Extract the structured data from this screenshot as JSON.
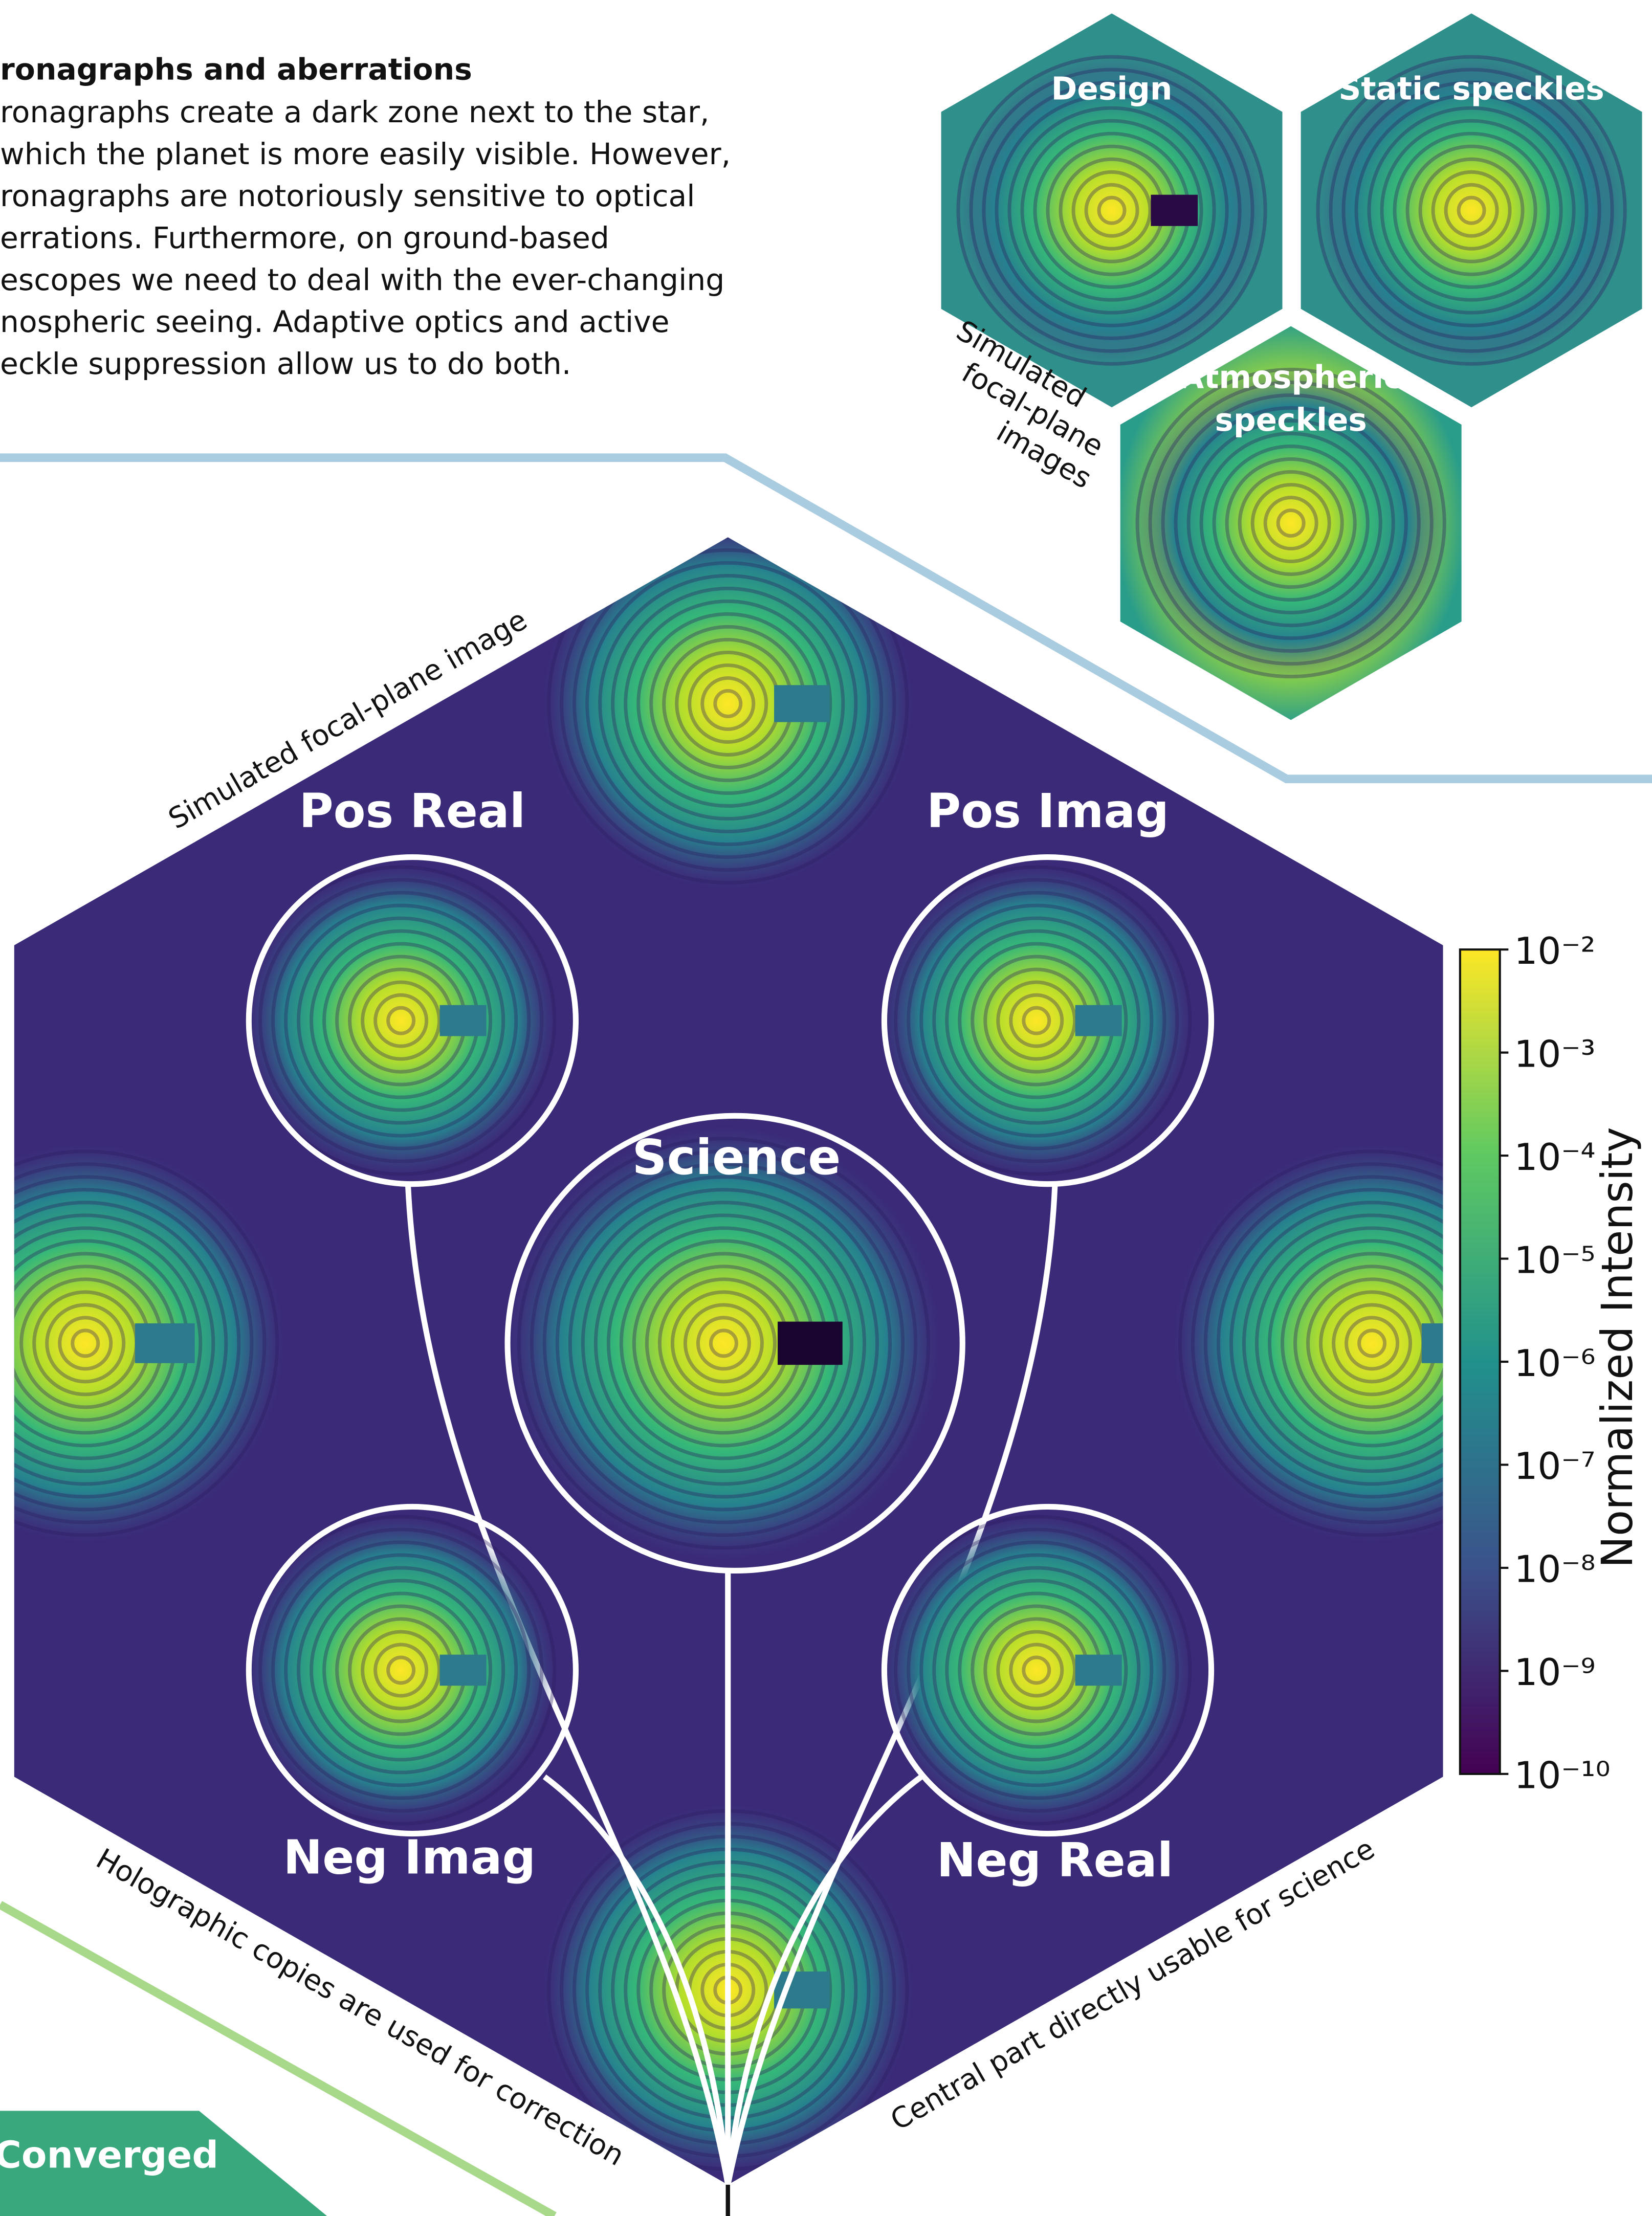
{
  "intro": {
    "heading": "ronagraphs and aberrations",
    "lines": [
      "ronagraphs create a dark zone next to the star,",
      "which the planet is more easily visible. However,",
      "ronagraphs are notoriously sensitive to optical",
      "errations. Furthermore, on ground-based",
      "escopes we need to deal with the ever-changing",
      "nospheric seeing. Adaptive optics and active",
      "eckle suppression allow us to do both."
    ]
  },
  "thumbnails": [
    {
      "label": [
        "Design"
      ]
    },
    {
      "label": [
        "Static speckles"
      ]
    },
    {
      "label": [
        "Atmospheric",
        "speckles"
      ]
    }
  ],
  "thumbnail_caption": [
    "Simulated",
    "focal-plane",
    "images"
  ],
  "main": {
    "caption_top": "Simulated focal-plane image",
    "caption_left": "Holographic copies are used for correction",
    "caption_right": "Central part directly usable for science",
    "regions": [
      "Pos Real",
      "Pos Imag",
      "Science",
      "Neg Imag",
      "Neg Real"
    ]
  },
  "colorbar": {
    "ticks": [
      "10⁻²",
      "10⁻³",
      "10⁻⁴",
      "10⁻⁵",
      "10⁻⁶",
      "10⁻⁷",
      "10⁻⁸",
      "10⁻⁹",
      "10⁻¹⁰"
    ],
    "label": "Normalized Intensity"
  },
  "converged": "Converged"
}
